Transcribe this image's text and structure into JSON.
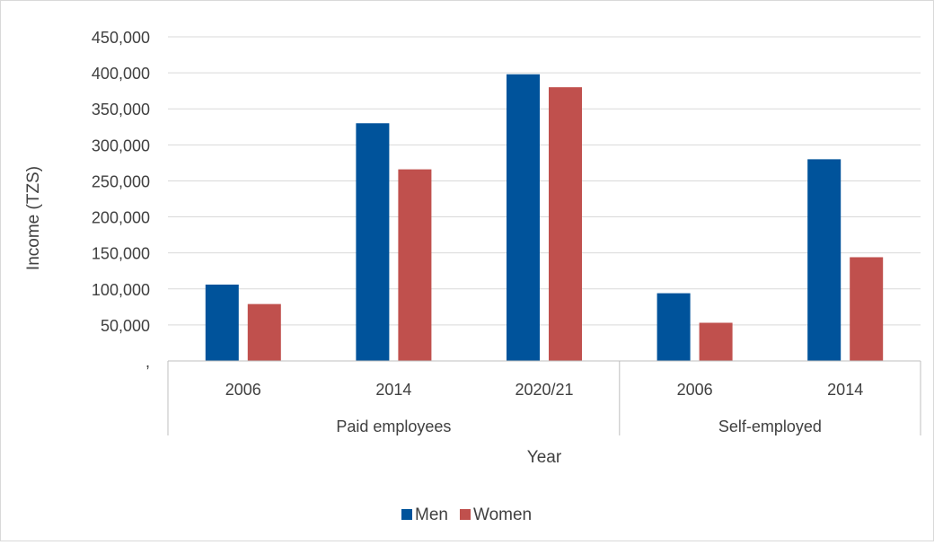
{
  "chart_data": {
    "type": "bar",
    "title": "",
    "xlabel": "Year",
    "ylabel": "Income (TZS)",
    "ylim": [
      0,
      450000
    ],
    "y_ticks": [
      ",",
      "50,000",
      "100,000",
      "150,000",
      "200,000",
      "250,000",
      "300,000",
      "350,000",
      "400,000",
      "450,000"
    ],
    "grid": true,
    "legend_position": "bottom",
    "groups": [
      {
        "label": "Paid employees",
        "categories": [
          "2006",
          "2014",
          "2020/21"
        ]
      },
      {
        "label": "Self-employed",
        "categories": [
          "2006",
          "2014"
        ]
      }
    ],
    "categories": [
      "2006",
      "2014",
      "2020/21",
      "2006",
      "2014"
    ],
    "series": [
      {
        "name": "Men",
        "color": "#00539b",
        "values": [
          106000,
          330000,
          398000,
          94000,
          280000
        ]
      },
      {
        "name": "Women",
        "color": "#c0504d",
        "values": [
          79000,
          266000,
          380000,
          53000,
          144000
        ]
      }
    ]
  }
}
